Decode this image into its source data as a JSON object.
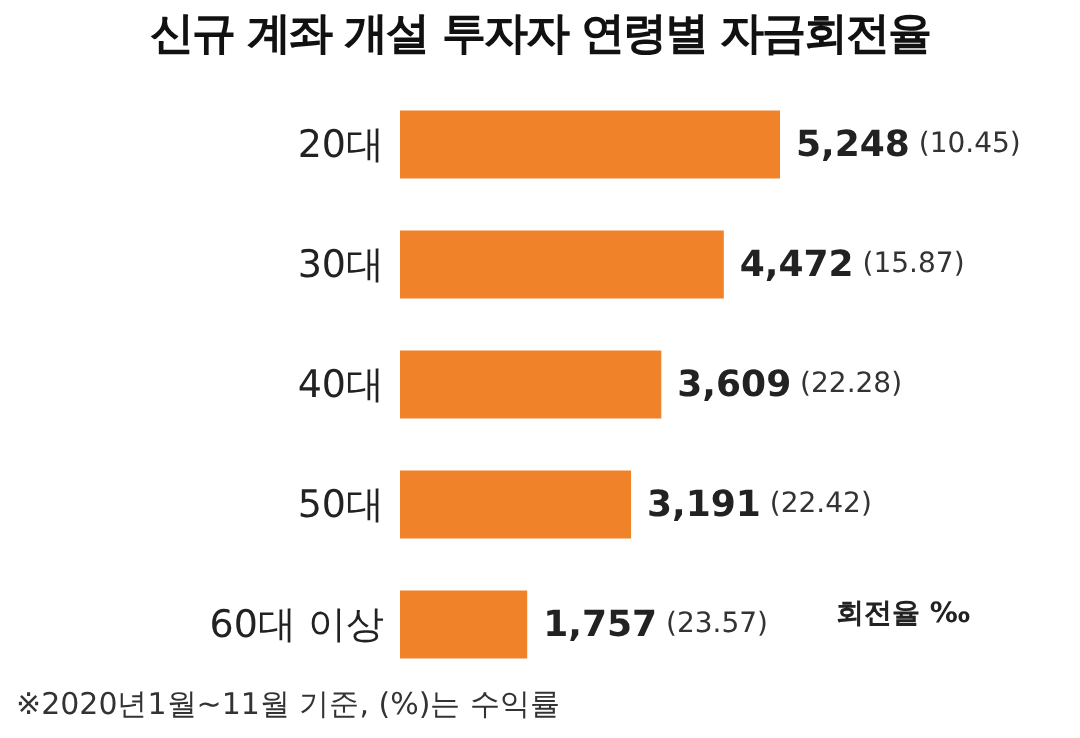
{
  "chart_data": {
    "type": "bar",
    "orientation": "horizontal",
    "title": "신규 계좌 개설 투자자 연령별 자금회전율",
    "categories": [
      "20대",
      "30대",
      "40대",
      "50대",
      "60대 이상"
    ],
    "values": [
      5248,
      4472,
      3609,
      3191,
      1757
    ],
    "value_labels": [
      "5,248 (10.45)",
      "4,472 (15.87)",
      "3,609 (22.28)",
      "3,191 (22.42)",
      "1,757 (23.57)"
    ],
    "color": "#f0822a",
    "annotations": [
      "회전율 ‰",
      "※2020년1월~11월 기준, (%)는 수익률"
    ],
    "grid": false,
    "legend": false
  }
}
